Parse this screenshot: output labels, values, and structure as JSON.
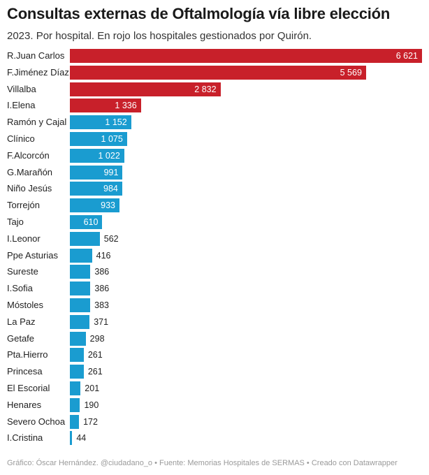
{
  "header": {
    "title": "Consultas externas de Oftalmología vía libre elección",
    "subtitle": "2023. Por hospital. En rojo los hospitales gestionados por Quirón."
  },
  "footer": {
    "credits": "Gráfico: Óscar Hernández. @ciudadano_o • Fuente: Memorias Hospitales de SERMAS • Creado con Datawrapper"
  },
  "colors": {
    "quiron": "#c8202a",
    "other": "#1a9cd0"
  },
  "chart_data": {
    "type": "bar",
    "orientation": "horizontal",
    "title": "Consultas externas de Oftalmología vía libre elección",
    "subtitle": "2023. Por hospital. En rojo los hospitales gestionados por Quirón.",
    "xlabel": "",
    "ylabel": "",
    "xlim": [
      0,
      6621
    ],
    "categories": [
      "R.Juan Carlos",
      "F.Jiménez Díaz",
      "Villalba",
      "I.Elena",
      "Ramón y Cajal",
      "Clínico",
      "F.Alcorcón",
      "G.Marañón",
      "Niño Jesús",
      "Torrejón",
      "Tajo",
      "I.Leonor",
      "Ppe Asturias",
      "Sureste",
      "I.Sofia",
      "Móstoles",
      "La Paz",
      "Getafe",
      "Pta.Hierro",
      "Princesa",
      "El Escorial",
      "Henares",
      "Severo Ochoa",
      "I.Cristina"
    ],
    "values": [
      6621,
      5569,
      2832,
      1336,
      1152,
      1075,
      1022,
      991,
      984,
      933,
      610,
      562,
      416,
      386,
      386,
      383,
      371,
      298,
      261,
      261,
      201,
      190,
      172,
      44
    ],
    "value_labels": [
      "6 621",
      "5 569",
      "2 832",
      "1 336",
      "1 152",
      "1 075",
      "1 022",
      "991",
      "984",
      "933",
      "610",
      "562",
      "416",
      "386",
      "386",
      "383",
      "371",
      "298",
      "261",
      "261",
      "201",
      "190",
      "172",
      "44"
    ],
    "quiron": [
      true,
      true,
      true,
      true,
      false,
      false,
      false,
      false,
      false,
      false,
      false,
      false,
      false,
      false,
      false,
      false,
      false,
      false,
      false,
      false,
      false,
      false,
      false,
      false
    ]
  }
}
